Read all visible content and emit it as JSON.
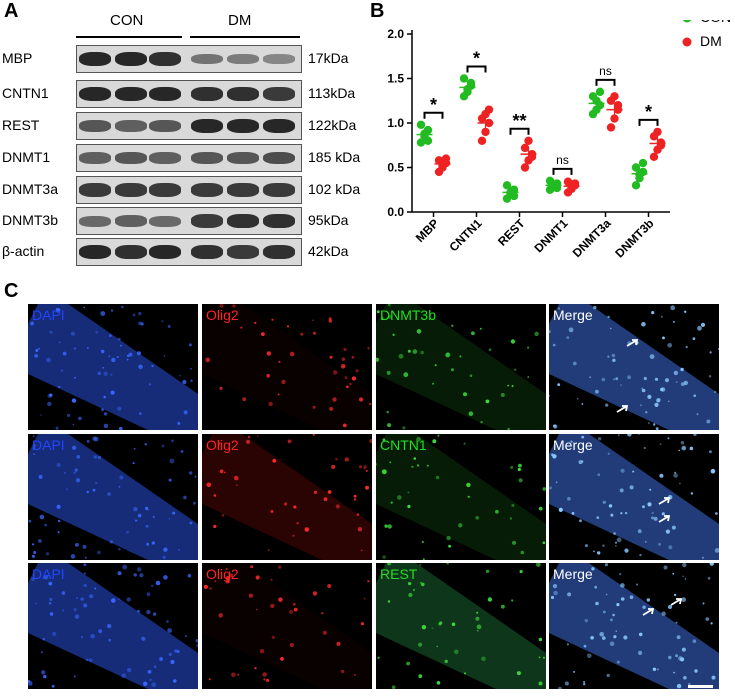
{
  "panels": {
    "a": "A",
    "b": "B",
    "c": "C"
  },
  "western_blot": {
    "groups": [
      "CON",
      "DM"
    ],
    "rows": [
      {
        "label": "MBP",
        "kda": "17kDa",
        "con": [
          0.85,
          0.85,
          0.8
        ],
        "dm": [
          0.45,
          0.4,
          0.35
        ]
      },
      {
        "label": "CNTN1",
        "kda": "113kDa",
        "con": [
          0.85,
          0.85,
          0.85
        ],
        "dm": [
          0.8,
          0.8,
          0.75
        ]
      },
      {
        "label": "REST",
        "kda": "122kDa",
        "con": [
          0.6,
          0.55,
          0.6
        ],
        "dm": [
          0.85,
          0.85,
          0.85
        ]
      },
      {
        "label": "DNMT1",
        "kda": "185 kDa",
        "con": [
          0.55,
          0.6,
          0.55
        ],
        "dm": [
          0.6,
          0.6,
          0.65
        ]
      },
      {
        "label": "DNMT3a",
        "kda": "102 kDa",
        "con": [
          0.75,
          0.75,
          0.75
        ],
        "dm": [
          0.75,
          0.75,
          0.75
        ]
      },
      {
        "label": "DNMT3b",
        "kda": "95kDa",
        "con": [
          0.5,
          0.55,
          0.5
        ],
        "dm": [
          0.75,
          0.8,
          0.8
        ]
      },
      {
        "label": "β-actin",
        "kda": "42kDa",
        "con": [
          0.85,
          0.8,
          0.85
        ],
        "dm": [
          0.8,
          0.75,
          0.8
        ]
      }
    ]
  },
  "chart_data": {
    "type": "scatter",
    "categories": [
      "MBP",
      "CNTN1",
      "REST",
      "DNMT1",
      "DNMT3a",
      "DNMT3b"
    ],
    "ylim": [
      0,
      2.0
    ],
    "yticks": [
      "0.0",
      "0.5",
      "1.0",
      "1.5",
      "2.0"
    ],
    "legend_position": "top-right",
    "series": [
      {
        "name": "CON",
        "color": "#22bb22",
        "points": [
          [
            0.78,
            0.85,
            0.92,
            0.98,
            0.88,
            0.8
          ],
          [
            1.3,
            1.35,
            1.42,
            1.5,
            1.38,
            1.45
          ],
          [
            0.15,
            0.2,
            0.25,
            0.3,
            0.22,
            0.18
          ],
          [
            0.25,
            0.28,
            0.32,
            0.35,
            0.3,
            0.27
          ],
          [
            1.1,
            1.15,
            1.2,
            1.3,
            1.25,
            1.35
          ],
          [
            0.3,
            0.38,
            0.45,
            0.5,
            0.42,
            0.55
          ]
        ],
        "means": [
          0.87,
          1.4,
          0.22,
          0.3,
          1.22,
          0.43
        ]
      },
      {
        "name": "DM",
        "color": "#ee2222",
        "points": [
          [
            0.45,
            0.5,
            0.55,
            0.58,
            0.52,
            0.6
          ],
          [
            0.8,
            0.9,
            1.0,
            1.05,
            1.1,
            1.15
          ],
          [
            0.5,
            0.58,
            0.65,
            0.72,
            0.8,
            0.62
          ],
          [
            0.22,
            0.26,
            0.3,
            0.34,
            0.28,
            0.32
          ],
          [
            0.95,
            1.05,
            1.15,
            1.25,
            1.3,
            1.2
          ],
          [
            0.62,
            0.7,
            0.78,
            0.85,
            0.9,
            0.75
          ]
        ],
        "means": [
          0.54,
          1.0,
          0.65,
          0.29,
          1.15,
          0.77
        ]
      }
    ],
    "significance": [
      "*",
      "*",
      "**",
      "ns",
      "ns",
      "*"
    ]
  },
  "microscopy": {
    "rows": [
      [
        "DAPI",
        "Olig2",
        "DNMT3b",
        "Merge"
      ],
      [
        "DAPI",
        "Olig2",
        "CNTN1",
        "Merge"
      ],
      [
        "DAPI",
        "Olig2",
        "REST",
        "Merge"
      ]
    ],
    "colors": {
      "dapi": "#2244ff",
      "olig2": "#ff2222",
      "green": "#22dd22",
      "merge": "#ffffff"
    }
  }
}
